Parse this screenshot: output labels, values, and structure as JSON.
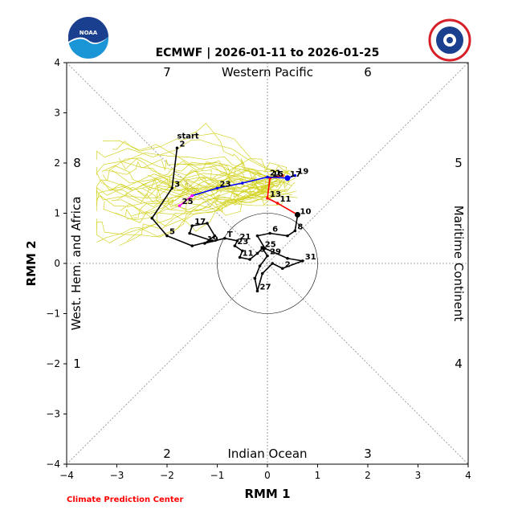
{
  "chart_data": {
    "type": "line",
    "title": "ECMWF | 2026-01-11 to 2026-01-25",
    "xlabel": "RMM 1",
    "ylabel": "RMM 2",
    "xlim": [
      -4,
      4
    ],
    "ylim": [
      -4,
      4
    ],
    "xticks": [
      "−4",
      "−3",
      "−2",
      "−1",
      "0",
      "1",
      "2",
      "3",
      "4"
    ],
    "yticks": [
      "−4",
      "−3",
      "−2",
      "−1",
      "0",
      "1",
      "2",
      "3",
      "4"
    ],
    "regions": {
      "top": "Western Pacific",
      "bottom": "Indian Ocean",
      "left": "West. Hem. and Africa",
      "right": "Maritime Continent"
    },
    "phases": [
      "1",
      "2",
      "3",
      "4",
      "5",
      "6",
      "7",
      "8"
    ],
    "credit": "Climate Prediction Center",
    "observed_start_label": "start",
    "colors": {
      "observed": "#000000",
      "forecast_week1": "#ff0000",
      "forecast_week2": "#0000ff",
      "forecast_week3": "#ff00ff",
      "ensemble": "#cccc00"
    },
    "observed": [
      {
        "x": -1.8,
        "y": 2.3,
        "label": "2"
      },
      {
        "x": -1.9,
        "y": 1.5,
        "label": "3"
      },
      {
        "x": -2.3,
        "y": 0.9,
        "label": ""
      },
      {
        "x": -2.0,
        "y": 0.55,
        "label": "5"
      },
      {
        "x": -1.5,
        "y": 0.35,
        "label": ""
      },
      {
        "x": -1.1,
        "y": 0.45,
        "label": ""
      },
      {
        "x": -1.55,
        "y": 0.6,
        "label": ""
      },
      {
        "x": -1.5,
        "y": 0.75,
        "label": "17"
      },
      {
        "x": -1.2,
        "y": 0.8,
        "label": ""
      },
      {
        "x": -1.05,
        "y": 0.55,
        "label": ""
      },
      {
        "x": -1.25,
        "y": 0.4,
        "label": "19"
      },
      {
        "x": -0.85,
        "y": 0.5,
        "label": "T"
      },
      {
        "x": -0.6,
        "y": 0.45,
        "label": "21"
      },
      {
        "x": -0.65,
        "y": 0.35,
        "label": "23"
      },
      {
        "x": -0.5,
        "y": 0.25,
        "label": ""
      },
      {
        "x": -0.55,
        "y": 0.12,
        "label": "11"
      },
      {
        "x": -0.35,
        "y": 0.08,
        "label": ""
      },
      {
        "x": -0.2,
        "y": 0.2,
        "label": "5"
      },
      {
        "x": -0.1,
        "y": 0.3,
        "label": "25"
      },
      {
        "x": 0.0,
        "y": 0.15,
        "label": "29"
      },
      {
        "x": -0.15,
        "y": -0.05,
        "label": ""
      },
      {
        "x": -0.25,
        "y": -0.3,
        "label": ""
      },
      {
        "x": -0.2,
        "y": -0.55,
        "label": "27"
      },
      {
        "x": -0.1,
        "y": -0.2,
        "label": ""
      },
      {
        "x": 0.1,
        "y": 0.0,
        "label": ""
      },
      {
        "x": 0.3,
        "y": -0.1,
        "label": "2"
      },
      {
        "x": 0.7,
        "y": 0.05,
        "label": "31"
      },
      {
        "x": 0.4,
        "y": 0.1,
        "label": ""
      },
      {
        "x": -0.05,
        "y": 0.3,
        "label": ""
      },
      {
        "x": -0.2,
        "y": 0.55,
        "label": ""
      },
      {
        "x": 0.05,
        "y": 0.6,
        "label": "6"
      },
      {
        "x": 0.4,
        "y": 0.55,
        "label": ""
      },
      {
        "x": 0.55,
        "y": 0.65,
        "label": "8"
      },
      {
        "x": 0.6,
        "y": 0.95,
        "label": "10"
      }
    ],
    "forecast_week1": [
      {
        "x": 0.6,
        "y": 0.97,
        "label": ""
      },
      {
        "x": 0.2,
        "y": 1.2,
        "label": "11"
      },
      {
        "x": 0.0,
        "y": 1.3,
        "label": "13"
      },
      {
        "x": 0.05,
        "y": 1.7,
        "label": "15"
      },
      {
        "x": 0.3,
        "y": 1.75,
        "label": ""
      }
    ],
    "forecast_week2": [
      {
        "x": 0.55,
        "y": 1.75,
        "label": "19"
      },
      {
        "x": 0.4,
        "y": 1.7,
        "label": "17"
      },
      {
        "x": 0.0,
        "y": 1.72,
        "label": "21"
      },
      {
        "x": -0.5,
        "y": 1.6,
        "label": ""
      },
      {
        "x": -1.0,
        "y": 1.5,
        "label": "23"
      },
      {
        "x": -1.5,
        "y": 1.35,
        "label": ""
      }
    ],
    "forecast_week3": [
      {
        "x": -1.5,
        "y": 1.35,
        "label": ""
      },
      {
        "x": -1.75,
        "y": 1.15,
        "label": "25"
      }
    ]
  }
}
